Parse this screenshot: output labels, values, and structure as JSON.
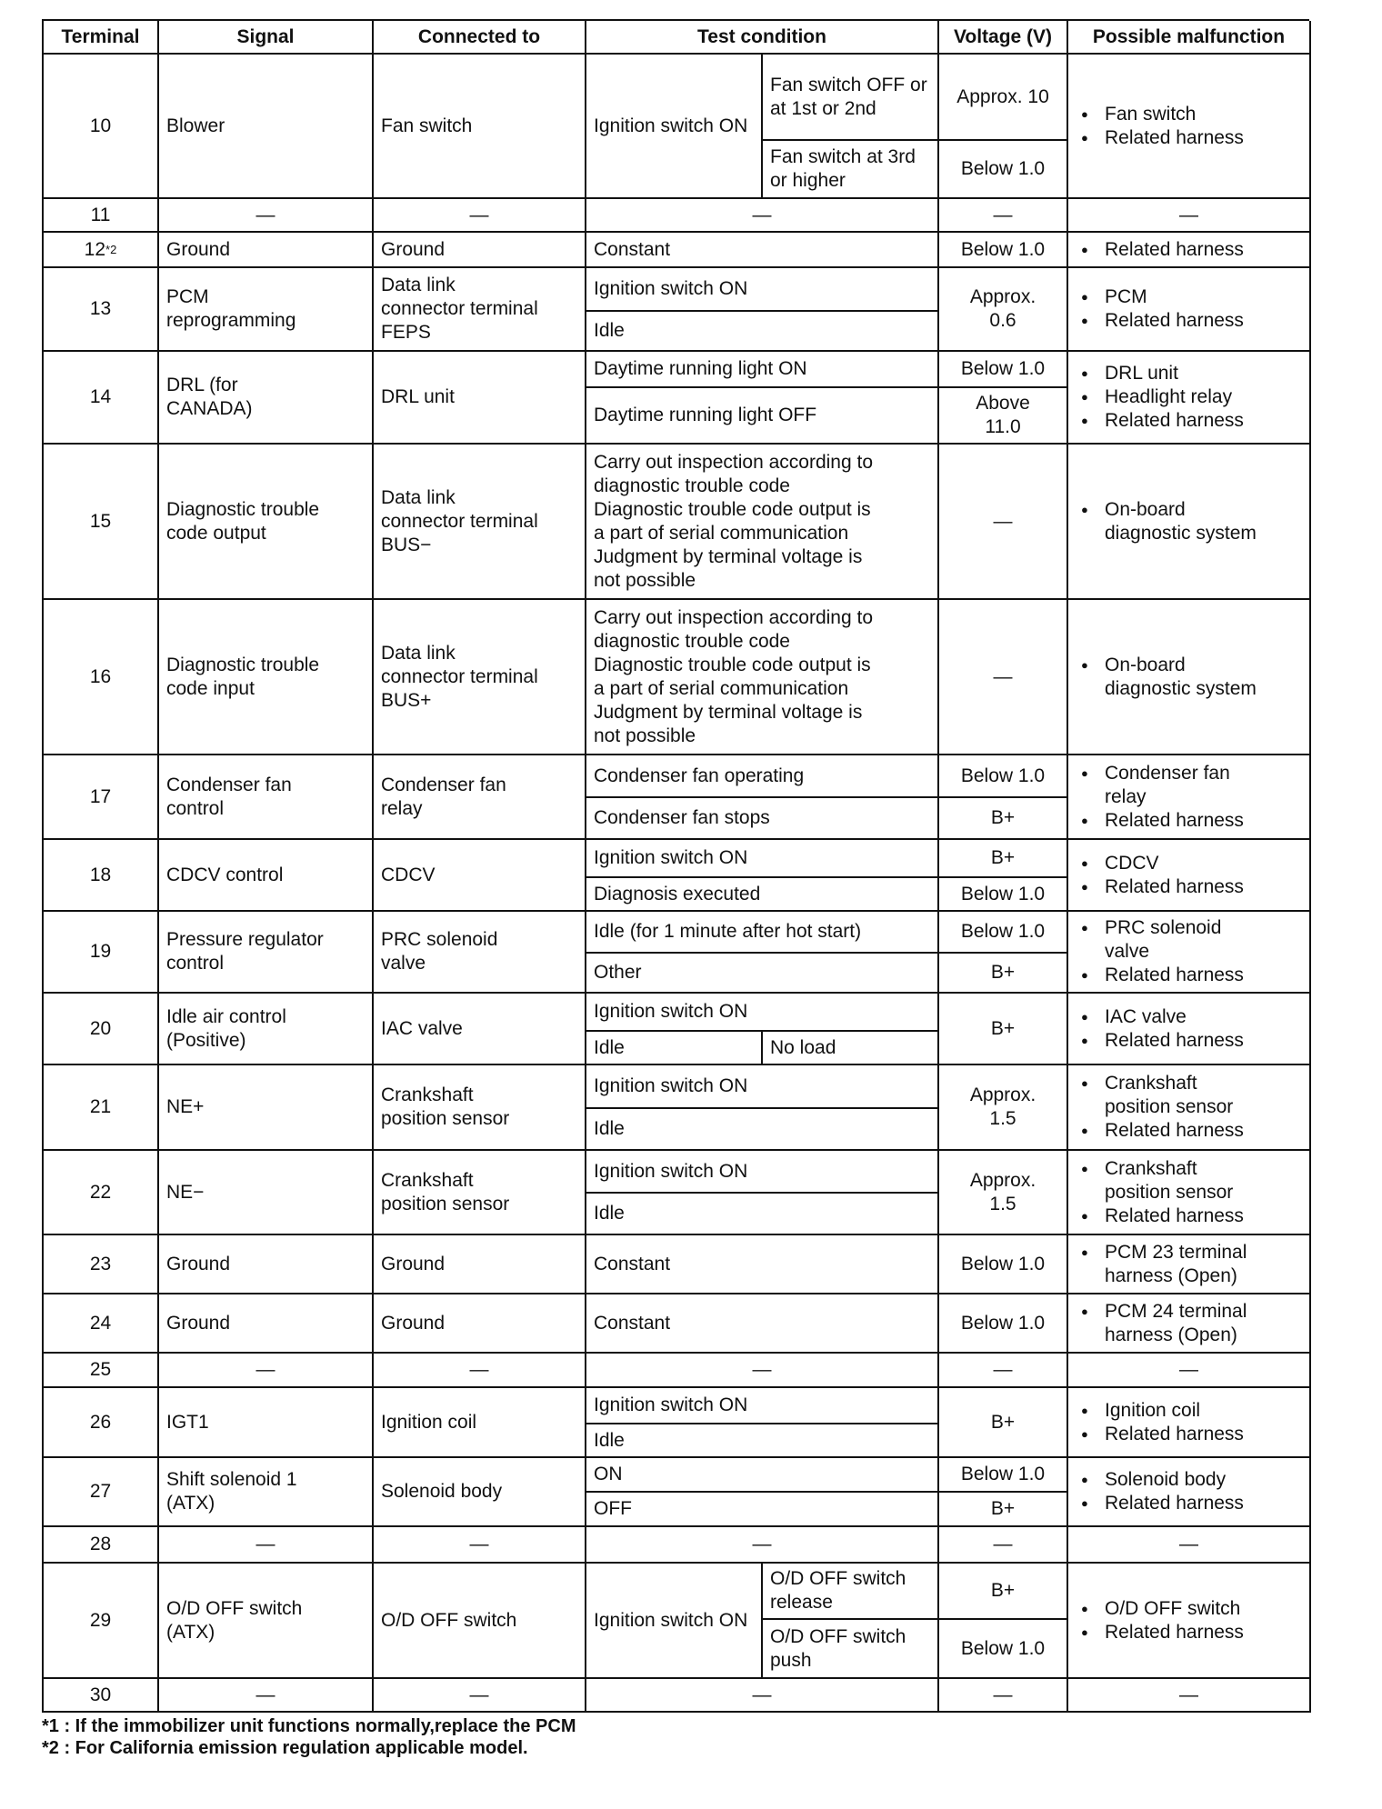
{
  "headers": [
    "Terminal",
    "Signal",
    "Connected to",
    "Test condition",
    "Voltage (V)",
    "Possible malfunction"
  ],
  "rows": [
    {
      "terminal": "10",
      "signal": "Blower",
      "connected_to": "Fan switch",
      "conditions": {
        "main": "Ignition switch\nON",
        "options": [
          "Fan switch\nOFF or at 1st\nor 2nd",
          "Fan switch at\n3rd or higher"
        ]
      },
      "voltage": [
        "Approx. 10",
        "Below 1.0"
      ],
      "malfunction": [
        "Fan switch",
        "Related harness"
      ]
    },
    {
      "terminal": "11",
      "signal": "—",
      "connected_to": "—",
      "conditions": [
        "—"
      ],
      "voltage": [
        "—"
      ],
      "malfunction_dash": "—"
    },
    {
      "terminal": "12",
      "terminal_sup": "*2",
      "signal": "Ground",
      "connected_to": "Ground",
      "conditions": [
        "Constant"
      ],
      "voltage": [
        "Below 1.0"
      ],
      "malfunction": [
        "Related harness"
      ]
    },
    {
      "terminal": "13",
      "signal": "PCM\nreprogramming",
      "connected_to": "Data link\nconnector terminal\nFEPS",
      "conditions": [
        "Ignition switch ON",
        "Idle"
      ],
      "voltage": [
        "Approx.\n0.6"
      ],
      "malfunction": [
        "PCM",
        "Related harness"
      ]
    },
    {
      "terminal": "14",
      "signal": "DRL (for\nCANADA)",
      "connected_to": "DRL unit",
      "conditions": [
        "Daytime running light ON",
        "Daytime running light OFF"
      ],
      "voltage": [
        "Below 1.0",
        "Above\n11.0"
      ],
      "malfunction": [
        "DRL unit",
        "Headlight relay",
        "Related harness"
      ]
    },
    {
      "terminal": "15",
      "signal": "Diagnostic trouble\ncode output",
      "connected_to": "Data link\nconnector terminal\nBUS−",
      "conditions": [
        "Carry out inspection according to\ndiagnostic trouble code\nDiagnostic trouble code output is\na part of serial communication\nJudgment by terminal voltage is\nnot possible"
      ],
      "voltage": [
        "—"
      ],
      "malfunction": [
        "On-board\ndiagnostic system"
      ]
    },
    {
      "terminal": "16",
      "signal": "Diagnostic trouble\ncode input",
      "connected_to": "Data link\nconnector terminal\nBUS+",
      "conditions": [
        "Carry out inspection according to\ndiagnostic trouble code\nDiagnostic trouble code output is\na part of serial communication\nJudgment by terminal voltage is\nnot possible"
      ],
      "voltage": [
        "—"
      ],
      "malfunction": [
        "On-board\ndiagnostic system"
      ]
    },
    {
      "terminal": "17",
      "signal": "Condenser fan\ncontrol",
      "connected_to": "Condenser fan\nrelay",
      "conditions": [
        "Condenser fan operating",
        "Condenser fan stops"
      ],
      "voltage": [
        "Below 1.0",
        "B+"
      ],
      "malfunction": [
        "Condenser fan\nrelay",
        "Related harness"
      ]
    },
    {
      "terminal": "18",
      "signal": "CDCV control",
      "connected_to": "CDCV",
      "conditions": [
        "Ignition switch ON",
        "Diagnosis executed"
      ],
      "voltage": [
        "B+",
        "Below 1.0"
      ],
      "malfunction": [
        "CDCV",
        "Related harness"
      ]
    },
    {
      "terminal": "19",
      "signal": "Pressure regulator\ncontrol",
      "connected_to": "PRC solenoid\nvalve",
      "conditions": [
        "Idle (for 1 minute after hot start)",
        "Other"
      ],
      "voltage": [
        "Below 1.0",
        "B+"
      ],
      "malfunction": [
        "PRC solenoid\nvalve",
        "Related harness"
      ]
    },
    {
      "terminal": "20",
      "signal": "Idle air control\n(Positive)",
      "connected_to": "IAC valve",
      "conditions": [
        "Ignition switch ON",
        [
          "Idle",
          "No load"
        ]
      ],
      "voltage": [
        "B+"
      ],
      "malfunction": [
        "IAC valve",
        "Related harness"
      ]
    },
    {
      "terminal": "21",
      "signal": "NE+",
      "connected_to": "Crankshaft\nposition sensor",
      "conditions": [
        "Ignition switch ON",
        "Idle"
      ],
      "voltage": [
        "Approx.\n1.5"
      ],
      "malfunction": [
        "Crankshaft\nposition sensor",
        "Related harness"
      ]
    },
    {
      "terminal": "22",
      "signal": "NE−",
      "connected_to": "Crankshaft\nposition sensor",
      "conditions": [
        "Ignition switch ON",
        "Idle"
      ],
      "voltage": [
        "Approx.\n1.5"
      ],
      "malfunction": [
        "Crankshaft\nposition sensor",
        "Related harness"
      ]
    },
    {
      "terminal": "23",
      "signal": "Ground",
      "connected_to": "Ground",
      "conditions": [
        "Constant"
      ],
      "voltage": [
        "Below 1.0"
      ],
      "malfunction": [
        "PCM 23 terminal\nharness (Open)"
      ]
    },
    {
      "terminal": "24",
      "signal": "Ground",
      "connected_to": "Ground",
      "conditions": [
        "Constant"
      ],
      "voltage": [
        "Below 1.0"
      ],
      "malfunction": [
        "PCM 24 terminal\nharness (Open)"
      ]
    },
    {
      "terminal": "25",
      "signal": "—",
      "connected_to": "—",
      "conditions": [
        "—"
      ],
      "voltage": [
        "—"
      ],
      "malfunction_dash": "—"
    },
    {
      "terminal": "26",
      "signal": "IGT1",
      "connected_to": "Ignition coil",
      "conditions": [
        "Ignition switch ON",
        "Idle"
      ],
      "voltage": [
        "B+"
      ],
      "malfunction": [
        "Ignition coil",
        "Related harness"
      ]
    },
    {
      "terminal": "27",
      "signal": "Shift solenoid 1\n(ATX)",
      "connected_to": "Solenoid body",
      "conditions": [
        "ON",
        "OFF"
      ],
      "voltage": [
        "Below 1.0",
        "B+"
      ],
      "malfunction": [
        "Solenoid body",
        "Related harness"
      ]
    },
    {
      "terminal": "28",
      "signal": "—",
      "connected_to": "—",
      "conditions": [
        "—"
      ],
      "voltage": [
        "—"
      ],
      "malfunction_dash": "—"
    },
    {
      "terminal": "29",
      "signal": "O/D OFF switch\n(ATX)",
      "connected_to": "O/D OFF switch",
      "conditions": {
        "main": "Ignition switch\nON",
        "options": [
          "O/D OFF\nswitch release",
          "O/D OFF\nswitch push"
        ]
      },
      "voltage": [
        "B+",
        "Below 1.0"
      ],
      "malfunction": [
        "O/D OFF switch",
        "Related harness"
      ]
    },
    {
      "terminal": "30",
      "signal": "—",
      "connected_to": "—",
      "conditions": [
        "—"
      ],
      "voltage": [
        "—"
      ],
      "malfunction_dash": "—"
    }
  ],
  "footnotes": [
    "*1 : If the immobilizer unit functions normally,replace the PCM",
    "*2 : For California emission regulation applicable model."
  ]
}
